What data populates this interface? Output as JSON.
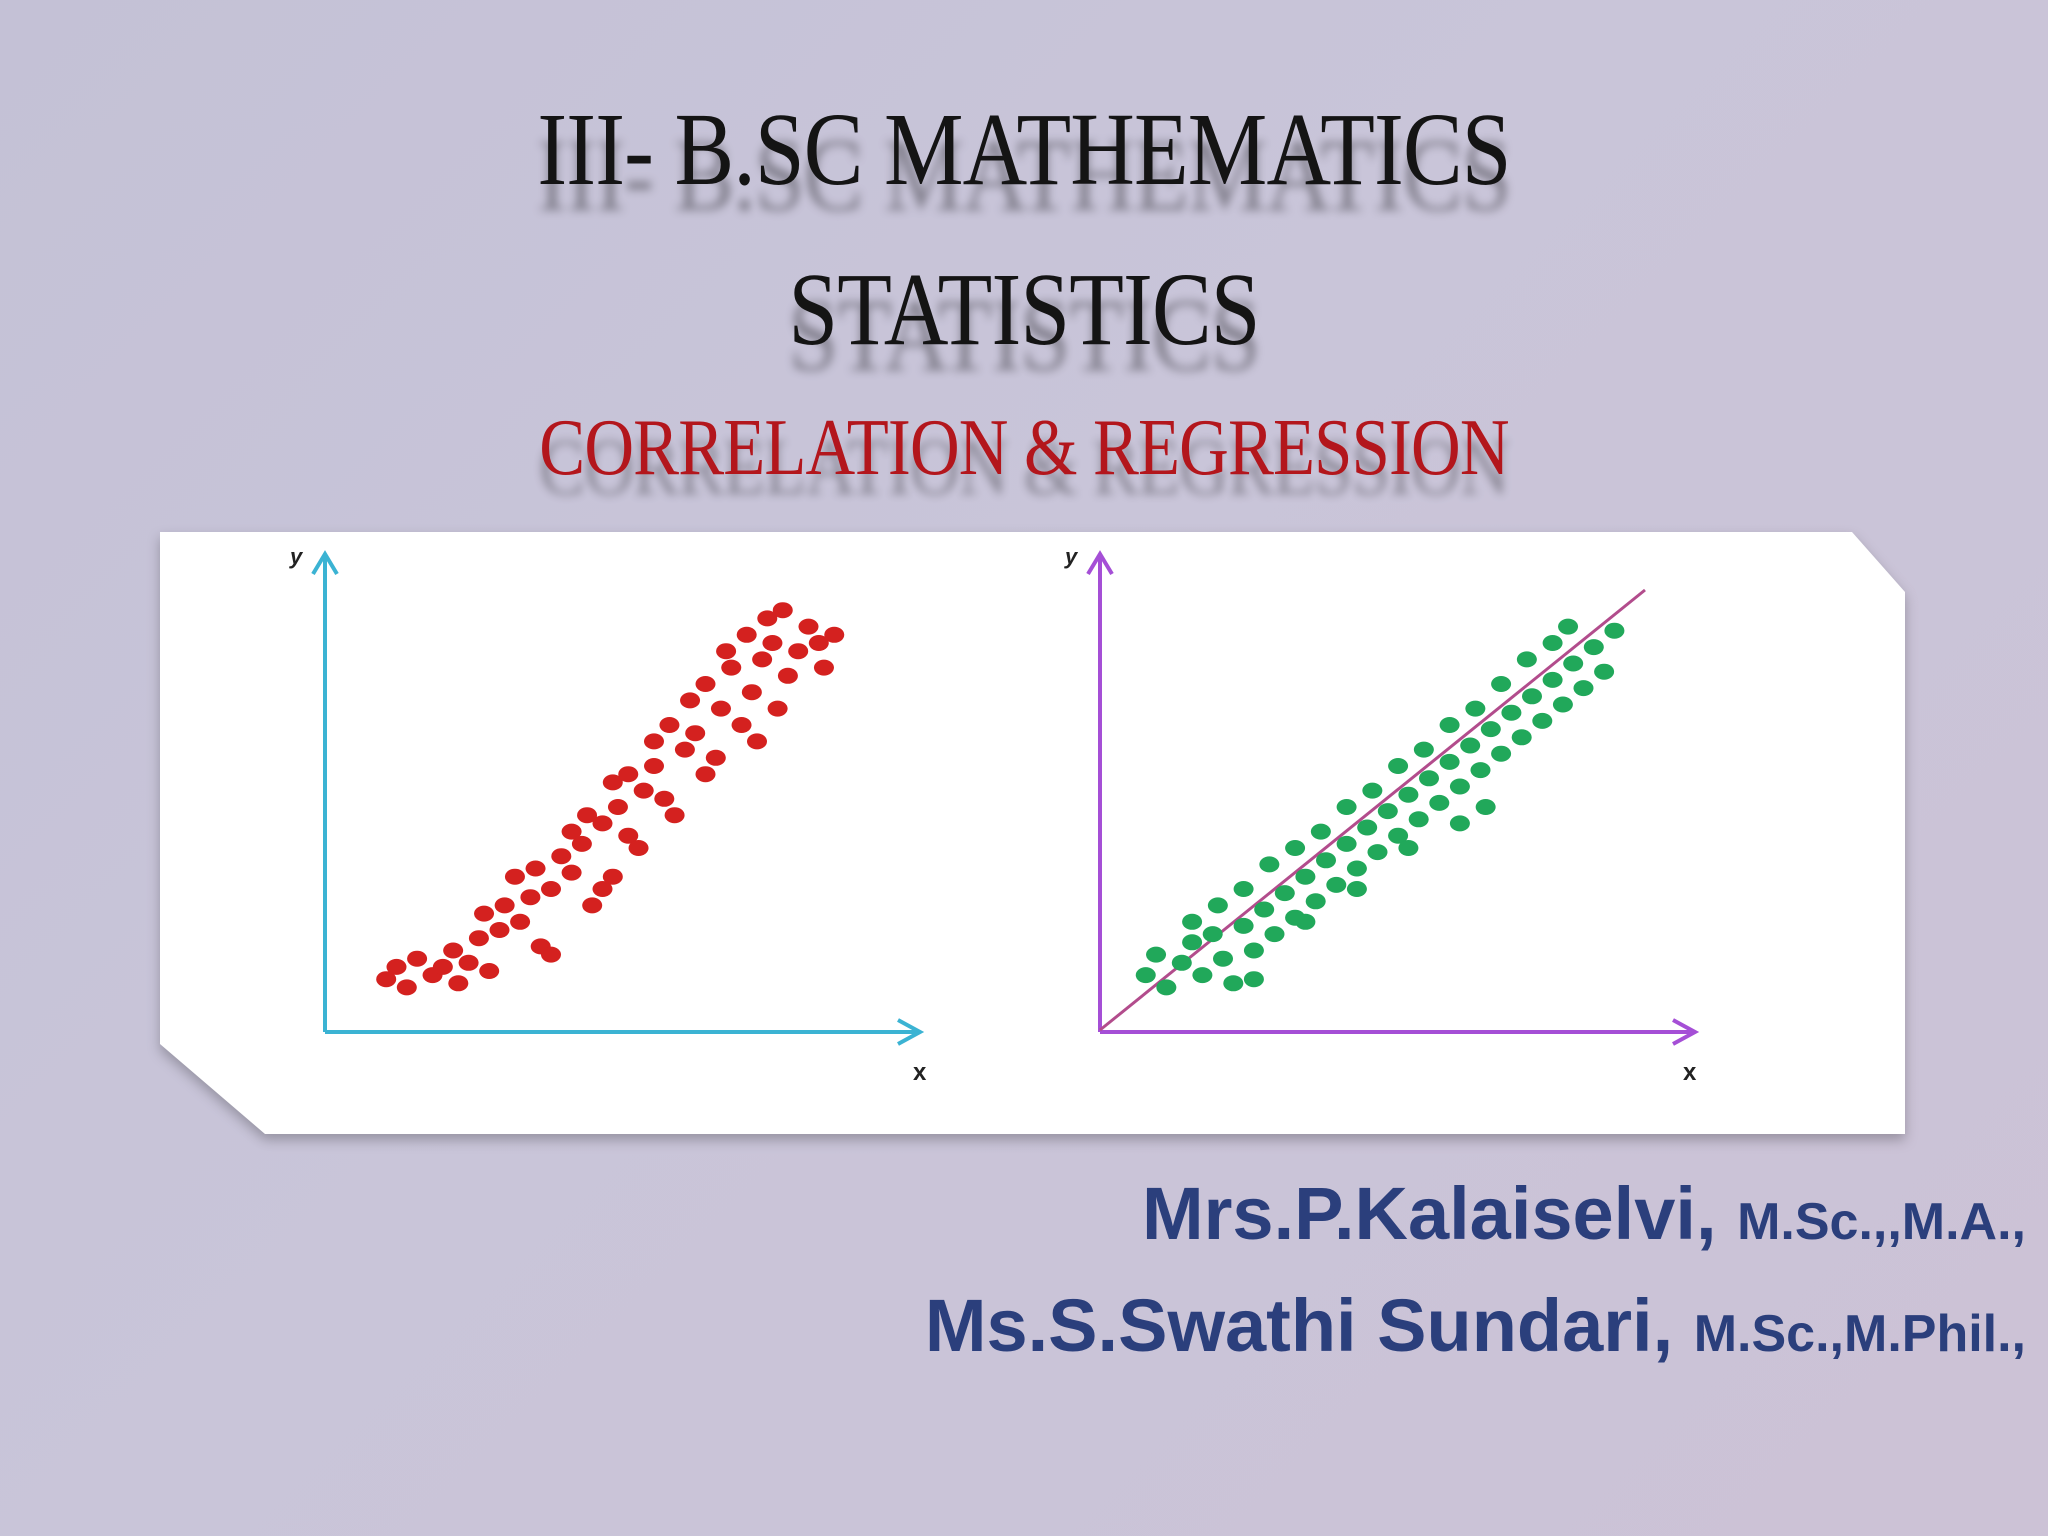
{
  "slide": {
    "title_main": "III- B.SC MATHEMATICS",
    "title_sub": "STATISTICS",
    "title_topic": "CORRELATION & REGRESSION",
    "authors": [
      {
        "name": "Mrs.P.Kalaiselvi, ",
        "degrees": "M.Sc.,,M.A.,"
      },
      {
        "name": "Ms.S.Swathi Sundari, ",
        "degrees": "M.Sc.,M.Phil.,"
      }
    ]
  },
  "colors": {
    "title": "#141414",
    "topic": "#b3161c",
    "authors": "#2b3f7c",
    "left_axis": "#3bb3d3",
    "right_axis": "#a54fd6",
    "left_points": "#d4211f",
    "right_points": "#21a85a",
    "regression_line": "#b24c8c"
  },
  "chart_data": [
    {
      "type": "scatter",
      "xlabel": "x",
      "ylabel": "y",
      "xlim": [
        0,
        100
      ],
      "ylim": [
        0,
        100
      ],
      "grid": false,
      "series": [
        {
          "points": [
            [
              8,
              8
            ],
            [
              10,
              11
            ],
            [
              12,
              6
            ],
            [
              14,
              13
            ],
            [
              17,
              9
            ],
            [
              19,
              11
            ],
            [
              21,
              15
            ],
            [
              22,
              7
            ],
            [
              24,
              12
            ],
            [
              26,
              18
            ],
            [
              28,
              10
            ],
            [
              30,
              20
            ],
            [
              27,
              24
            ],
            [
              31,
              26
            ],
            [
              34,
              22
            ],
            [
              36,
              28
            ],
            [
              38,
              16
            ],
            [
              40,
              14
            ],
            [
              33,
              33
            ],
            [
              37,
              35
            ],
            [
              40,
              30
            ],
            [
              42,
              38
            ],
            [
              44,
              34
            ],
            [
              46,
              41
            ],
            [
              48,
              26
            ],
            [
              50,
              30
            ],
            [
              52,
              33
            ],
            [
              44,
              44
            ],
            [
              47,
              48
            ],
            [
              50,
              46
            ],
            [
              53,
              50
            ],
            [
              55,
              43
            ],
            [
              57,
              40
            ],
            [
              52,
              56
            ],
            [
              55,
              58
            ],
            [
              58,
              54
            ],
            [
              60,
              60
            ],
            [
              62,
              52
            ],
            [
              64,
              48
            ],
            [
              60,
              66
            ],
            [
              63,
              70
            ],
            [
              66,
              64
            ],
            [
              68,
              68
            ],
            [
              70,
              58
            ],
            [
              72,
              62
            ],
            [
              67,
              76
            ],
            [
              70,
              80
            ],
            [
              73,
              74
            ],
            [
              75,
              84
            ],
            [
              77,
              70
            ],
            [
              79,
              78
            ],
            [
              74,
              88
            ],
            [
              78,
              92
            ],
            [
              81,
              86
            ],
            [
              83,
              90
            ],
            [
              86,
              82
            ],
            [
              88,
              88
            ],
            [
              82,
              96
            ],
            [
              85,
              98
            ],
            [
              90,
              94
            ],
            [
              92,
              90
            ],
            [
              95,
              92
            ],
            [
              93,
              84
            ],
            [
              80,
              66
            ],
            [
              84,
              74
            ]
          ]
        }
      ]
    },
    {
      "type": "scatter",
      "xlabel": "x",
      "ylabel": "y",
      "xlim": [
        0,
        100
      ],
      "ylim": [
        0,
        100
      ],
      "grid": false,
      "series": [
        {
          "points": [
            [
              5,
              9
            ],
            [
              7,
              14
            ],
            [
              9,
              6
            ],
            [
              12,
              12
            ],
            [
              14,
              17
            ],
            [
              16,
              9
            ],
            [
              18,
              19
            ],
            [
              20,
              13
            ],
            [
              22,
              7
            ],
            [
              24,
              21
            ],
            [
              26,
              15
            ],
            [
              28,
              25
            ],
            [
              30,
              19
            ],
            [
              32,
              29
            ],
            [
              34,
              23
            ],
            [
              36,
              33
            ],
            [
              38,
              27
            ],
            [
              40,
              37
            ],
            [
              42,
              31
            ],
            [
              44,
              41
            ],
            [
              46,
              35
            ],
            [
              48,
              45
            ],
            [
              50,
              39
            ],
            [
              52,
              49
            ],
            [
              54,
              43
            ],
            [
              56,
              53
            ],
            [
              58,
              47
            ],
            [
              60,
              57
            ],
            [
              62,
              51
            ],
            [
              64,
              61
            ],
            [
              66,
              55
            ],
            [
              68,
              65
            ],
            [
              70,
              59
            ],
            [
              72,
              69
            ],
            [
              74,
              63
            ],
            [
              76,
              73
            ],
            [
              78,
              67
            ],
            [
              80,
              77
            ],
            [
              82,
              71
            ],
            [
              84,
              81
            ],
            [
              86,
              75
            ],
            [
              88,
              85
            ],
            [
              90,
              79
            ],
            [
              92,
              89
            ],
            [
              94,
              83
            ],
            [
              96,
              93
            ],
            [
              87,
              94
            ],
            [
              84,
              90
            ],
            [
              79,
              86
            ],
            [
              74,
              80
            ],
            [
              69,
              74
            ],
            [
              64,
              70
            ],
            [
              59,
              64
            ],
            [
              54,
              60
            ],
            [
              49,
              54
            ],
            [
              44,
              50
            ],
            [
              39,
              44
            ],
            [
              34,
              40
            ],
            [
              29,
              36
            ],
            [
              24,
              30
            ],
            [
              19,
              26
            ],
            [
              14,
              22
            ],
            [
              66,
              46
            ],
            [
              71,
              50
            ],
            [
              56,
              40
            ],
            [
              46,
              30
            ],
            [
              36,
              22
            ],
            [
              26,
              8
            ]
          ]
        }
      ],
      "regression_line": {
        "x": [
          0,
          100
        ],
        "y": [
          0,
          100
        ]
      }
    }
  ]
}
